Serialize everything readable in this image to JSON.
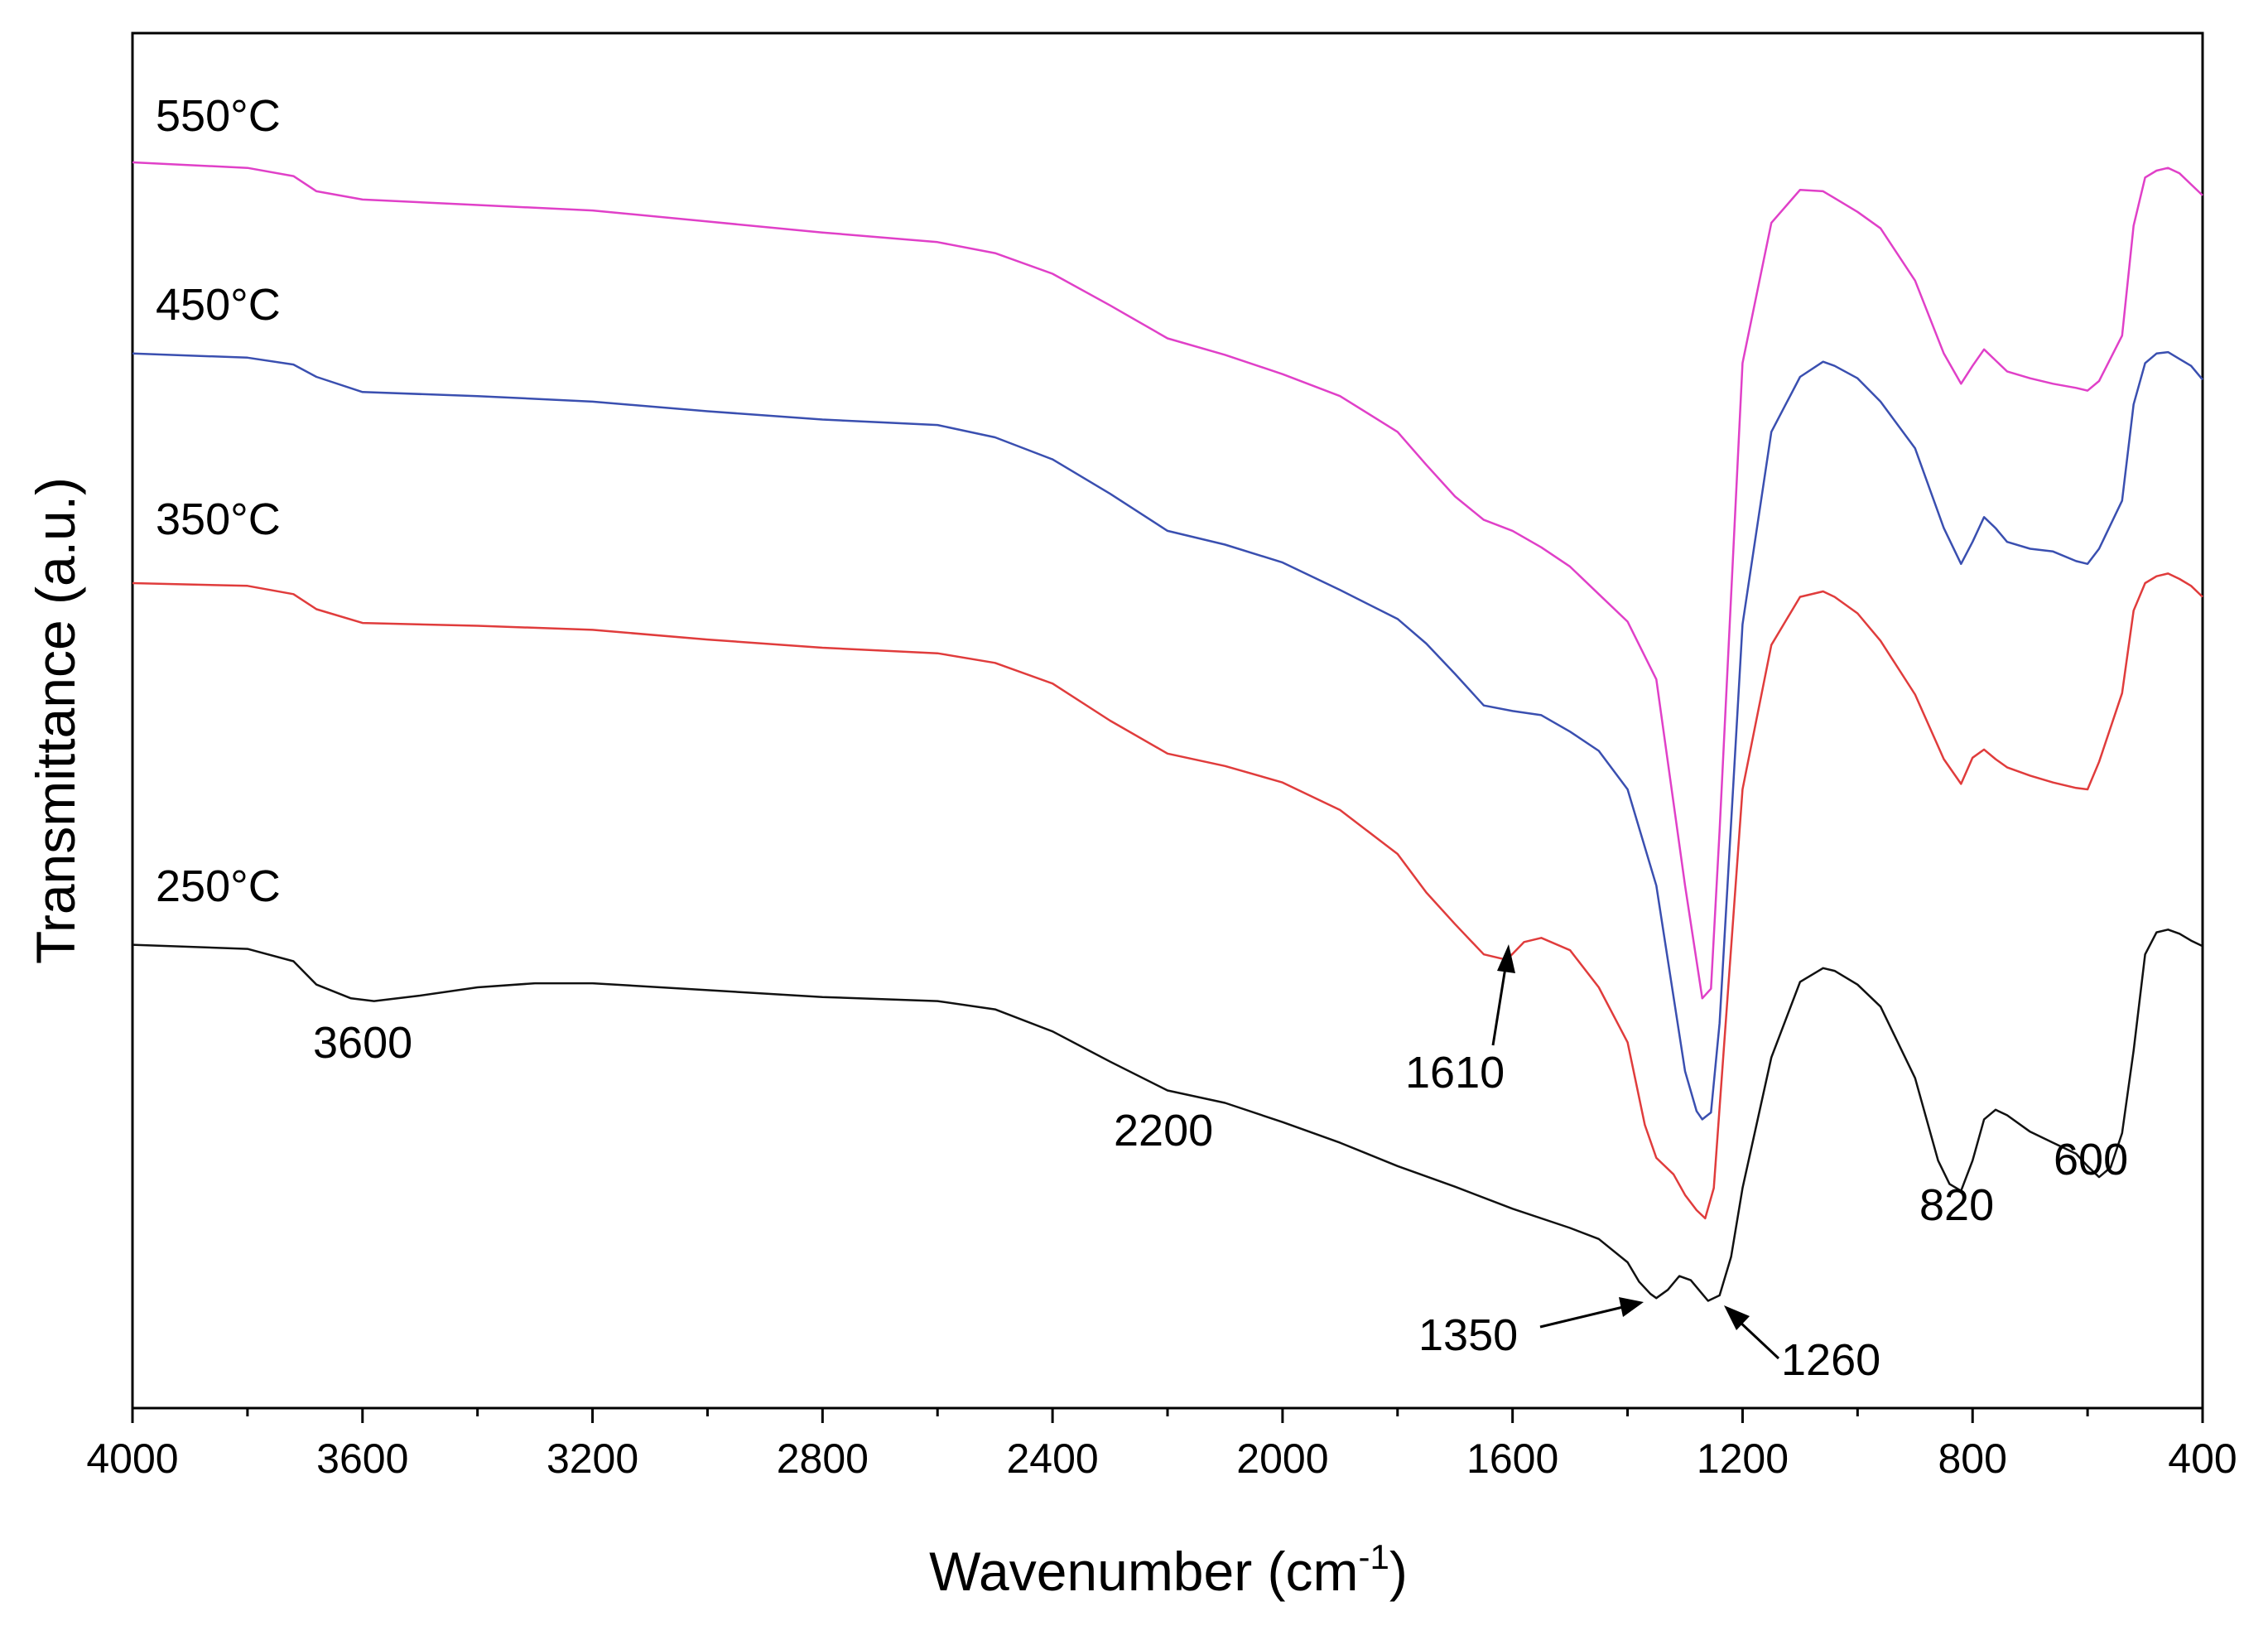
{
  "chart_data": {
    "type": "line",
    "title": "",
    "xlabel": "Wavenumber (cm",
    "xlabel_sup": "-1",
    "xlabel_end": ")",
    "ylabel": "Transmittance (a.u.)",
    "xlim": [
      4000,
      400
    ],
    "ylim": [
      0,
      100
    ],
    "xticks": [
      4000,
      3600,
      3200,
      2800,
      2400,
      2000,
      1600,
      1200,
      800,
      400
    ],
    "xtick_labels": [
      "4000",
      "3600",
      "3200",
      "2800",
      "2400",
      "2000",
      "1600",
      "1200",
      "800",
      "400"
    ],
    "series_labels_units": "stacked, arbitrary offset",
    "series": [
      {
        "name": "550°C",
        "color": "#e040c8",
        "x": [
          4000,
          3800,
          3720,
          3680,
          3600,
          3400,
          3200,
          3000,
          2800,
          2600,
          2500,
          2400,
          2300,
          2200,
          2100,
          2000,
          1900,
          1800,
          1750,
          1700,
          1650,
          1600,
          1550,
          1500,
          1450,
          1400,
          1350,
          1300,
          1270,
          1255,
          1240,
          1200,
          1150,
          1100,
          1060,
          1040,
          1000,
          960,
          900,
          850,
          820,
          800,
          780,
          760,
          740,
          700,
          660,
          620,
          600,
          580,
          540,
          520,
          500,
          480,
          460,
          440,
          420,
          400
        ],
        "y": [
          90.6,
          90.2,
          89.6,
          88.5,
          87.9,
          87.5,
          87.1,
          86.3,
          85.5,
          84.8,
          84.0,
          82.5,
          80.2,
          77.8,
          76.6,
          75.2,
          73.6,
          71.0,
          68.6,
          66.3,
          64.6,
          63.8,
          62.6,
          61.2,
          59.2,
          57.2,
          53.0,
          38.0,
          29.8,
          30.5,
          42.0,
          76.0,
          86.2,
          88.6,
          88.5,
          88.0,
          87.0,
          85.8,
          82.0,
          76.7,
          74.5,
          75.8,
          77.0,
          76.2,
          75.4,
          74.9,
          74.5,
          74.2,
          74.0,
          74.7,
          78.0,
          86.0,
          89.5,
          90.0,
          90.2,
          89.8,
          89.0,
          88.2
        ]
      },
      {
        "name": "450°C",
        "color": "#3a4fb0",
        "x": [
          4000,
          3800,
          3720,
          3680,
          3600,
          3400,
          3200,
          3000,
          2800,
          2600,
          2500,
          2400,
          2300,
          2200,
          2100,
          2000,
          1900,
          1800,
          1750,
          1700,
          1650,
          1600,
          1550,
          1500,
          1450,
          1400,
          1350,
          1300,
          1280,
          1270,
          1255,
          1240,
          1200,
          1150,
          1100,
          1060,
          1040,
          1000,
          960,
          900,
          850,
          820,
          800,
          780,
          760,
          740,
          700,
          660,
          620,
          600,
          580,
          540,
          520,
          500,
          480,
          460,
          440,
          420,
          400
        ],
        "y": [
          76.7,
          76.4,
          75.9,
          75.0,
          73.9,
          73.6,
          73.2,
          72.5,
          71.9,
          71.5,
          70.6,
          69.0,
          66.5,
          63.8,
          62.8,
          61.5,
          59.5,
          57.4,
          55.6,
          53.4,
          51.1,
          50.7,
          50.4,
          49.2,
          47.8,
          45.0,
          38.0,
          24.5,
          21.6,
          21.0,
          21.5,
          28.0,
          57.0,
          71.0,
          75.0,
          76.1,
          75.8,
          74.9,
          73.2,
          69.8,
          64.0,
          61.4,
          63.0,
          64.8,
          64.0,
          63.0,
          62.5,
          62.3,
          61.6,
          61.4,
          62.5,
          66.0,
          73.0,
          76.0,
          76.7,
          76.8,
          76.3,
          75.8,
          74.8
        ]
      },
      {
        "name": "350°C",
        "color": "#e03c3c",
        "x": [
          4000,
          3800,
          3720,
          3680,
          3600,
          3400,
          3200,
          3000,
          2800,
          2600,
          2500,
          2400,
          2300,
          2200,
          2100,
          2000,
          1900,
          1800,
          1750,
          1700,
          1650,
          1610,
          1580,
          1550,
          1500,
          1450,
          1400,
          1370,
          1350,
          1320,
          1300,
          1280,
          1265,
          1250,
          1200,
          1150,
          1100,
          1060,
          1040,
          1000,
          960,
          900,
          850,
          820,
          800,
          780,
          760,
          740,
          700,
          660,
          620,
          600,
          580,
          540,
          520,
          500,
          480,
          460,
          440,
          420,
          400
        ],
        "y": [
          60.0,
          59.8,
          59.2,
          58.1,
          57.1,
          56.9,
          56.6,
          55.9,
          55.3,
          54.9,
          54.2,
          52.7,
          50.0,
          47.6,
          46.7,
          45.5,
          43.5,
          40.3,
          37.5,
          35.2,
          33.0,
          32.6,
          33.9,
          34.2,
          33.3,
          30.6,
          26.6,
          20.6,
          18.2,
          17.0,
          15.5,
          14.4,
          13.8,
          16.0,
          45.0,
          55.5,
          59.0,
          59.4,
          59.0,
          57.8,
          55.8,
          51.9,
          47.2,
          45.4,
          47.3,
          47.9,
          47.2,
          46.6,
          46.0,
          45.5,
          45.1,
          45.0,
          47.0,
          52.0,
          58.0,
          60.0,
          60.5,
          60.7,
          60.3,
          59.8,
          59.0
        ]
      },
      {
        "name": "250°C",
        "color": "#111111",
        "x": [
          4000,
          3800,
          3720,
          3680,
          3620,
          3580,
          3500,
          3400,
          3300,
          3200,
          3000,
          2800,
          2600,
          2500,
          2400,
          2300,
          2200,
          2100,
          2000,
          1900,
          1800,
          1700,
          1600,
          1500,
          1450,
          1400,
          1380,
          1360,
          1350,
          1330,
          1310,
          1290,
          1270,
          1260,
          1240,
          1220,
          1200,
          1150,
          1100,
          1060,
          1040,
          1000,
          960,
          900,
          860,
          840,
          820,
          800,
          780,
          760,
          740,
          700,
          660,
          620,
          600,
          580,
          560,
          540,
          520,
          500,
          480,
          460,
          440,
          420,
          400
        ],
        "y": [
          33.7,
          33.4,
          32.5,
          30.8,
          29.8,
          29.6,
          30.0,
          30.6,
          30.9,
          30.9,
          30.4,
          29.9,
          29.6,
          29.0,
          27.4,
          25.2,
          23.1,
          22.2,
          20.8,
          19.3,
          17.6,
          16.1,
          14.5,
          13.1,
          12.3,
          10.6,
          9.2,
          8.3,
          8.0,
          8.6,
          9.6,
          9.3,
          8.3,
          7.8,
          8.2,
          11.0,
          16.0,
          25.5,
          31.0,
          32.0,
          31.8,
          30.8,
          29.2,
          24.0,
          18.0,
          16.3,
          15.8,
          18.0,
          21.0,
          21.7,
          21.3,
          20.1,
          19.3,
          18.5,
          17.6,
          16.8,
          17.5,
          20.0,
          26.0,
          33.0,
          34.6,
          34.8,
          34.5,
          34.0,
          33.6
        ]
      }
    ],
    "annotations": [
      {
        "text": "3600",
        "arrow": false
      },
      {
        "text": "2200",
        "arrow": false
      },
      {
        "text": "1610",
        "arrow": true
      },
      {
        "text": "1350",
        "arrow": true
      },
      {
        "text": "1260",
        "arrow": true
      },
      {
        "text": "820",
        "arrow": false
      },
      {
        "text": "600",
        "arrow": false
      }
    ]
  }
}
